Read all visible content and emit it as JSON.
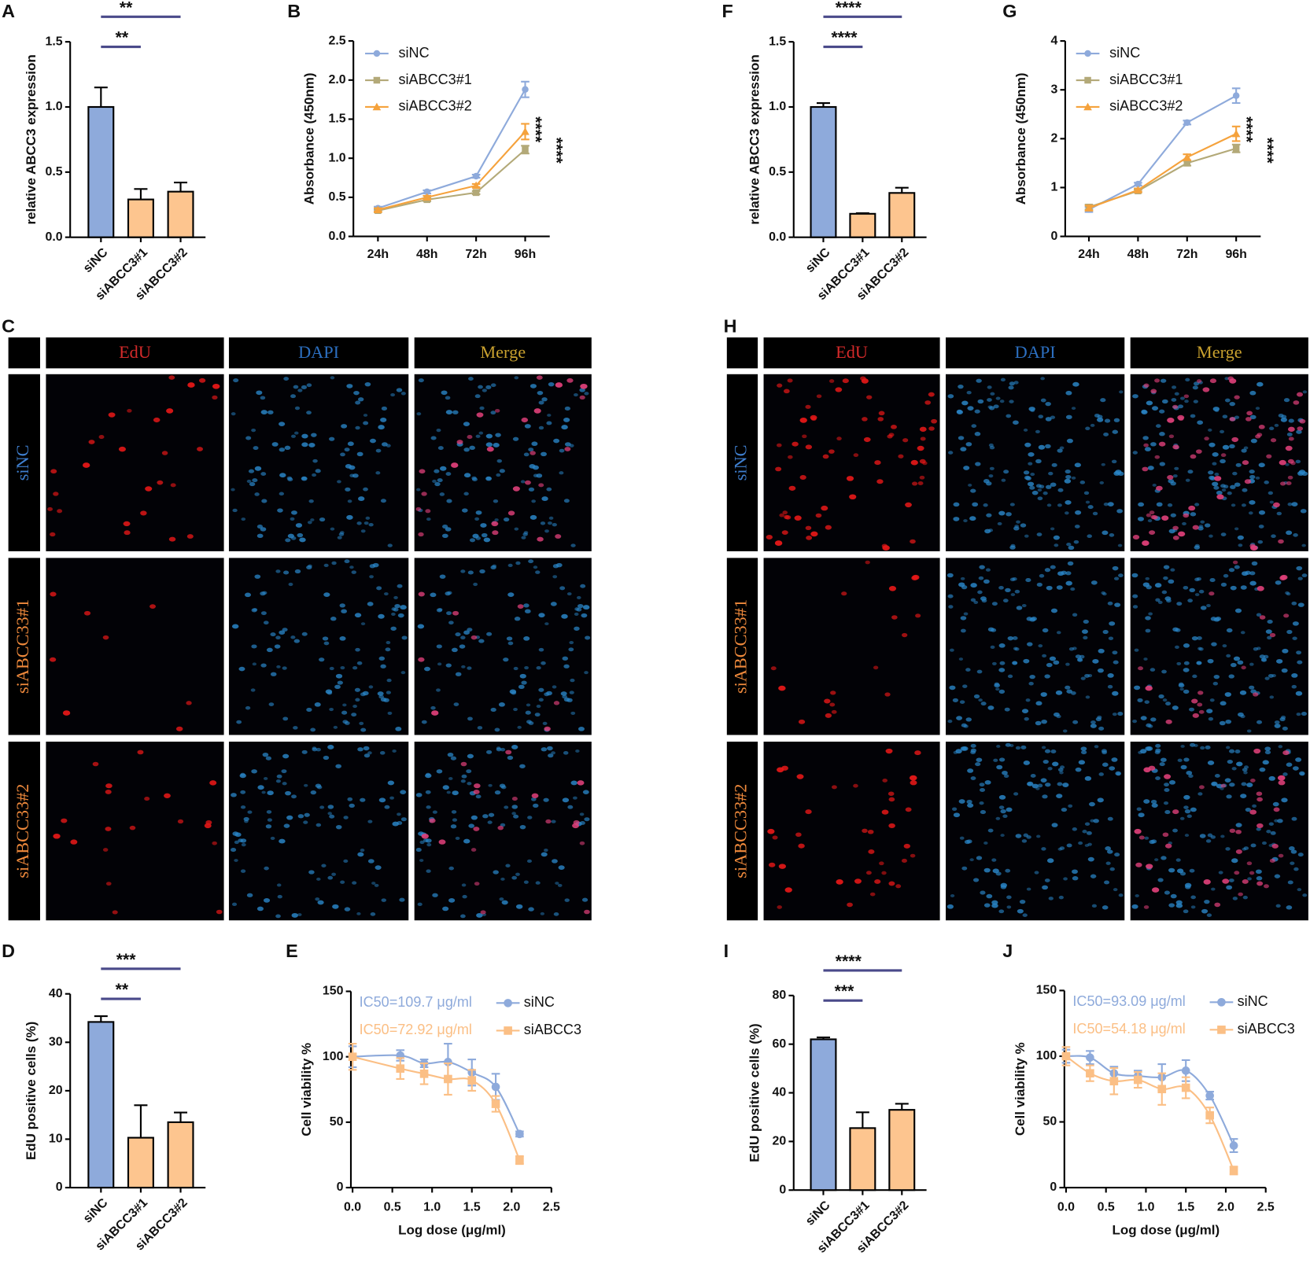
{
  "chart_data": [
    {
      "panel": "A",
      "type": "bar",
      "ylabel": "relative ABCC3 expression",
      "categories": [
        "siNC",
        "siABCC3#1",
        "siABCC3#2"
      ],
      "values": [
        1.0,
        0.29,
        0.35
      ],
      "errors": [
        0.15,
        0.08,
        0.07
      ],
      "colors": [
        "#8eaadb",
        "#fdc58f",
        "#fdc58f"
      ],
      "ylim": [
        0,
        1.5
      ],
      "yticks": [
        {
          "value": 0,
          "label": "0.0"
        },
        0.5,
        {
          "value": 1,
          "label": "1.0"
        },
        1.5
      ],
      "significance": [
        {
          "from": 0,
          "to": 1,
          "label": "**"
        },
        {
          "from": 0,
          "to": 2,
          "label": "**"
        }
      ]
    },
    {
      "panel": "B",
      "type": "line",
      "ylabel": "Absorbance (450nm)",
      "categories": [
        "24h",
        "48h",
        "72h",
        "96h"
      ],
      "series": [
        {
          "name": "siNC",
          "color": "#8eaadb",
          "marker": "circle",
          "values": [
            0.36,
            0.57,
            0.77,
            1.88
          ],
          "errors": [
            0.02,
            0.02,
            0.02,
            0.1
          ]
        },
        {
          "name": "siABCC3#1",
          "color": "#b3a978",
          "marker": "square",
          "values": [
            0.33,
            0.47,
            0.56,
            1.11
          ],
          "errors": [
            0.02,
            0.02,
            0.02,
            0.05
          ]
        },
        {
          "name": "siABCC3#2",
          "color": "#f5a23c",
          "marker": "triangle",
          "values": [
            0.34,
            0.5,
            0.65,
            1.34
          ],
          "errors": [
            0.02,
            0.02,
            0.02,
            0.1
          ]
        }
      ],
      "ylim": [
        0,
        2.5
      ],
      "yticks": [
        {
          "value": 0,
          "label": "0.0"
        },
        0.5,
        {
          "value": 1,
          "label": "1.0"
        },
        1.5,
        {
          "value": 2,
          "label": "2.0"
        },
        2.5
      ],
      "significance": [
        "****",
        "****"
      ]
    },
    {
      "panel": "F",
      "type": "bar",
      "ylabel": "relative ABCC3 expression",
      "categories": [
        "siNC",
        "siABCC3#1",
        "siABCC3#2"
      ],
      "values": [
        1.0,
        0.18,
        0.34
      ],
      "errors": [
        0.03,
        0.005,
        0.04
      ],
      "colors": [
        "#8eaadb",
        "#fdc58f",
        "#fdc58f"
      ],
      "ylim": [
        0,
        1.5
      ],
      "yticks": [
        {
          "value": 0,
          "label": "0.0"
        },
        0.5,
        {
          "value": 1,
          "label": "1.0"
        },
        1.5
      ],
      "significance": [
        {
          "from": 0,
          "to": 1,
          "label": "****"
        },
        {
          "from": 0,
          "to": 2,
          "label": "****"
        }
      ]
    },
    {
      "panel": "G",
      "type": "line",
      "ylabel": "Absorbance (450nm)",
      "categories": [
        "24h",
        "48h",
        "72h",
        "96h"
      ],
      "series": [
        {
          "name": "siNC",
          "color": "#8eaadb",
          "marker": "circle",
          "values": [
            0.55,
            1.07,
            2.33,
            2.88
          ],
          "errors": [
            0.05,
            0.03,
            0.04,
            0.15
          ]
        },
        {
          "name": "siABCC3#1",
          "color": "#b3a978",
          "marker": "square",
          "values": [
            0.6,
            0.93,
            1.5,
            1.8
          ],
          "errors": [
            0.05,
            0.03,
            0.05,
            0.08
          ]
        },
        {
          "name": "siABCC3#2",
          "color": "#f5a23c",
          "marker": "triangle",
          "values": [
            0.58,
            0.95,
            1.62,
            2.1
          ],
          "errors": [
            0.05,
            0.03,
            0.06,
            0.15
          ]
        }
      ],
      "ylim": [
        0,
        4
      ],
      "yticks": [
        0,
        1,
        2,
        3,
        4
      ],
      "significance": [
        "****",
        "****"
      ]
    },
    {
      "panel": "D",
      "type": "bar",
      "ylabel": "EdU positive cells (%)",
      "categories": [
        "siNC",
        "siABCC3#1",
        "siABCC3#2"
      ],
      "values": [
        34.2,
        10.3,
        13.5
      ],
      "errors": [
        1.2,
        6.7,
        2
      ],
      "colors": [
        "#8eaadb",
        "#fdc58f",
        "#fdc58f"
      ],
      "ylim": [
        0,
        40
      ],
      "yticks": [
        0,
        10,
        20,
        30,
        40
      ],
      "significance": [
        {
          "from": 0,
          "to": 1,
          "label": "**"
        },
        {
          "from": 0,
          "to": 2,
          "label": "***"
        }
      ]
    },
    {
      "panel": "E",
      "type": "scatter",
      "xlabel": "Log dose (μg/ml)",
      "ylabel": "Cell viability %",
      "x": [
        0,
        0.6,
        0.9,
        1.2,
        1.5,
        1.8,
        2.1
      ],
      "series": [
        {
          "name": "siNC",
          "color": "#8eaadb",
          "marker": "circle",
          "annotation": "IC50=109.7 μg/ml",
          "values": [
            100,
            101,
            95,
            96,
            88,
            77,
            41
          ],
          "errors": [
            8,
            4,
            3,
            14,
            10,
            10,
            2
          ]
        },
        {
          "name": "siABCC3",
          "color": "#fbbf85",
          "marker": "square",
          "annotation": "IC50=72.92 μg/ml",
          "values": [
            100,
            91,
            87,
            83,
            82,
            64,
            21
          ],
          "errors": [
            10,
            8,
            8,
            12,
            8,
            6,
            3
          ]
        }
      ],
      "xlim": [
        0,
        2.5
      ],
      "xticks": [
        {
          "value": 0,
          "label": "0.0"
        },
        0.5,
        {
          "value": 1,
          "label": "1.0"
        },
        1.5,
        {
          "value": 2,
          "label": "2.0"
        },
        2.5
      ],
      "ylim": [
        0,
        150
      ],
      "yticks": [
        0,
        50,
        100,
        150
      ]
    },
    {
      "panel": "I",
      "type": "bar",
      "ylabel": "EdU positive cells (%)",
      "categories": [
        "siNC",
        "siABCC3#1",
        "siABCC3#2"
      ],
      "values": [
        62,
        25.5,
        33
      ],
      "errors": [
        0.8,
        6.5,
        2.5
      ],
      "colors": [
        "#8eaadb",
        "#fdc58f",
        "#fdc58f"
      ],
      "ylim": [
        0,
        80
      ],
      "yticks": [
        0,
        20,
        40,
        60,
        80
      ],
      "significance": [
        {
          "from": 0,
          "to": 1,
          "label": "***"
        },
        {
          "from": 0,
          "to": 2,
          "label": "****"
        }
      ]
    },
    {
      "panel": "J",
      "type": "scatter",
      "xlabel": "Log dose (μg/ml)",
      "ylabel": "Cell viability %",
      "x": [
        0,
        0.3,
        0.6,
        0.9,
        1.2,
        1.5,
        1.8,
        2.1
      ],
      "series": [
        {
          "name": "siNC",
          "color": "#8eaadb",
          "marker": "circle",
          "annotation": "IC50=93.09 μg/ml",
          "values": [
            100,
            99,
            87,
            85,
            84,
            89,
            70,
            32
          ],
          "errors": [
            5,
            5,
            5,
            4,
            10,
            8,
            3,
            5
          ]
        },
        {
          "name": "siABCC3",
          "color": "#fbbf85",
          "marker": "square",
          "annotation": "IC50=54.18 μg/ml",
          "values": [
            100,
            87,
            81,
            82,
            75,
            76,
            55,
            13
          ],
          "errors": [
            7,
            6,
            10,
            6,
            12,
            8,
            6,
            3
          ]
        }
      ],
      "xlim": [
        0,
        2.5
      ],
      "xticks": [
        {
          "value": 0,
          "label": "0.0"
        },
        0.5,
        {
          "value": 1,
          "label": "1.0"
        },
        1.5,
        {
          "value": 2,
          "label": "2.0"
        },
        2.5
      ],
      "ylim": [
        0,
        150
      ],
      "yticks": [
        0,
        50,
        100,
        150
      ]
    }
  ],
  "image_panels": [
    {
      "panel": "C",
      "columns": [
        "EdU",
        "DAPI",
        "Merge"
      ],
      "column_colors": [
        "#d42a2a",
        "#2c6fc0",
        "#c8a02e"
      ],
      "rows": [
        "siNC",
        "siABCC33#1",
        "siABCC33#2"
      ],
      "row_colors": [
        "#3f7fcf",
        "#f08a3c",
        "#f08a3c"
      ]
    },
    {
      "panel": "H",
      "columns": [
        "EdU",
        "DAPI",
        "Merge"
      ],
      "column_colors": [
        "#d42a2a",
        "#2c6fc0",
        "#c8a02e"
      ],
      "rows": [
        "siNC",
        "siABCC33#1",
        "siABCC33#2"
      ],
      "row_colors": [
        "#3f7fcf",
        "#f08a3c",
        "#f08a3c"
      ]
    }
  ]
}
